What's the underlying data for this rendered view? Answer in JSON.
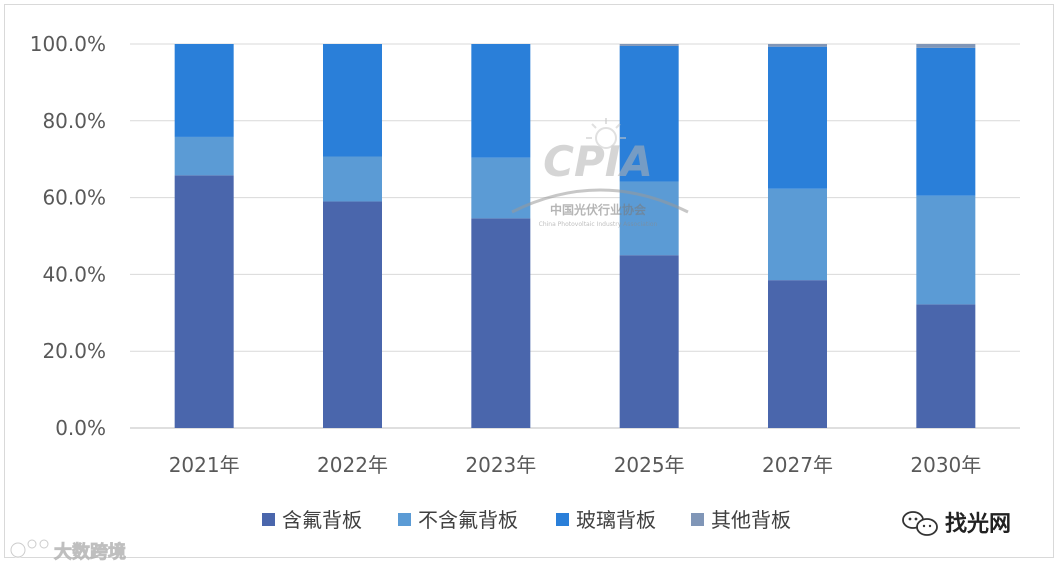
{
  "chart_data": {
    "type": "bar",
    "stacked": true,
    "categories": [
      "2021年",
      "2022年",
      "2023年",
      "2025年",
      "2027年",
      "2030年"
    ],
    "series": [
      {
        "name": "含氟背板",
        "color": "#4a66ac",
        "values": [
          65.8,
          59.0,
          54.6,
          45.0,
          38.5,
          32.2
        ]
      },
      {
        "name": "不含氟背板",
        "color": "#5b9bd5",
        "values": [
          10.0,
          11.7,
          15.8,
          19.2,
          23.8,
          28.3
        ]
      },
      {
        "name": "玻璃背板",
        "color": "#2a7fd9",
        "values": [
          24.2,
          29.3,
          29.6,
          35.3,
          37.0,
          38.5
        ]
      },
      {
        "name": "其他背板",
        "color": "#8096b7",
        "values": [
          0.0,
          0.0,
          0.0,
          0.5,
          0.7,
          1.0
        ]
      }
    ],
    "ylim": [
      0,
      100
    ],
    "yticks": [
      "0.0%",
      "20.0%",
      "40.0%",
      "60.0%",
      "80.0%",
      "100.0%"
    ],
    "ytick_values": [
      0,
      20,
      40,
      60,
      80,
      100
    ],
    "grid": true,
    "legend_position": "bottom"
  },
  "watermarks": {
    "cpia_logo": "CPIA",
    "cpia_cn": "中国光伏行业协会",
    "cpia_en": "China Photovoltaic Industry Association",
    "wechat_source": "找光网",
    "bottom_left_source": "大数跨境"
  }
}
